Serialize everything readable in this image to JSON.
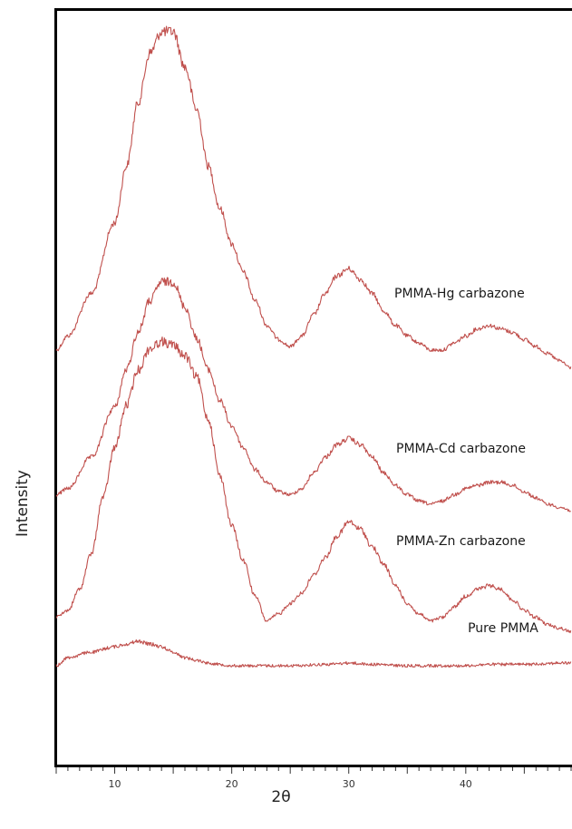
{
  "chart_data": {
    "type": "line",
    "title": "",
    "xlabel": "2θ",
    "ylabel": "Intensity",
    "xlim": [
      5,
      49
    ],
    "xticks": [
      10,
      20,
      30,
      40
    ],
    "grid": false,
    "line_color": "#c0504d",
    "series": [
      {
        "name": "PMMA-Hg carbazone",
        "points": [
          [
            5,
            0.1
          ],
          [
            6,
            0.14
          ],
          [
            8,
            0.26
          ],
          [
            10,
            0.46
          ],
          [
            11,
            0.62
          ],
          [
            12,
            0.8
          ],
          [
            13,
            0.94
          ],
          [
            14,
            1.0
          ],
          [
            15,
            1.0
          ],
          [
            16,
            0.9
          ],
          [
            17,
            0.78
          ],
          [
            18,
            0.62
          ],
          [
            19,
            0.5
          ],
          [
            20,
            0.4
          ],
          [
            21,
            0.32
          ],
          [
            22,
            0.24
          ],
          [
            23,
            0.17
          ],
          [
            24,
            0.13
          ],
          [
            25,
            0.11
          ],
          [
            26,
            0.14
          ],
          [
            27,
            0.2
          ],
          [
            28,
            0.26
          ],
          [
            29,
            0.31
          ],
          [
            30,
            0.33
          ],
          [
            31,
            0.3
          ],
          [
            32,
            0.26
          ],
          [
            33,
            0.21
          ],
          [
            34,
            0.17
          ],
          [
            35,
            0.14
          ],
          [
            36,
            0.12
          ],
          [
            37,
            0.1
          ],
          [
            38,
            0.1
          ],
          [
            39,
            0.12
          ],
          [
            40,
            0.14
          ],
          [
            41,
            0.16
          ],
          [
            42,
            0.17
          ],
          [
            43,
            0.16
          ],
          [
            44,
            0.15
          ],
          [
            45,
            0.13
          ],
          [
            46,
            0.11
          ],
          [
            47,
            0.09
          ],
          [
            48,
            0.07
          ],
          [
            49,
            0.05
          ]
        ]
      },
      {
        "name": "PMMA-Cd carbazone",
        "points": [
          [
            5,
            0.1
          ],
          [
            6,
            0.12
          ],
          [
            8,
            0.22
          ],
          [
            10,
            0.38
          ],
          [
            11,
            0.5
          ],
          [
            12,
            0.62
          ],
          [
            13,
            0.72
          ],
          [
            14,
            0.78
          ],
          [
            15,
            0.78
          ],
          [
            16,
            0.7
          ],
          [
            17,
            0.6
          ],
          [
            18,
            0.5
          ],
          [
            19,
            0.4
          ],
          [
            20,
            0.32
          ],
          [
            21,
            0.25
          ],
          [
            22,
            0.18
          ],
          [
            23,
            0.14
          ],
          [
            24,
            0.11
          ],
          [
            25,
            0.1
          ],
          [
            26,
            0.12
          ],
          [
            27,
            0.17
          ],
          [
            28,
            0.22
          ],
          [
            29,
            0.26
          ],
          [
            30,
            0.28
          ],
          [
            31,
            0.26
          ],
          [
            32,
            0.22
          ],
          [
            33,
            0.17
          ],
          [
            34,
            0.13
          ],
          [
            35,
            0.1
          ],
          [
            36,
            0.08
          ],
          [
            37,
            0.07
          ],
          [
            38,
            0.08
          ],
          [
            39,
            0.1
          ],
          [
            40,
            0.12
          ],
          [
            41,
            0.13
          ],
          [
            42,
            0.14
          ],
          [
            43,
            0.14
          ],
          [
            44,
            0.13
          ],
          [
            45,
            0.11
          ],
          [
            46,
            0.09
          ],
          [
            47,
            0.07
          ],
          [
            48,
            0.06
          ],
          [
            49,
            0.05
          ]
        ]
      },
      {
        "name": "PMMA-Zn carbazone",
        "points": [
          [
            5,
            0.08
          ],
          [
            6,
            0.1
          ],
          [
            7,
            0.16
          ],
          [
            8,
            0.26
          ],
          [
            9,
            0.42
          ],
          [
            10,
            0.56
          ],
          [
            11,
            0.68
          ],
          [
            12,
            0.78
          ],
          [
            13,
            0.84
          ],
          [
            14,
            0.86
          ],
          [
            15,
            0.85
          ],
          [
            16,
            0.82
          ],
          [
            17,
            0.76
          ],
          [
            18,
            0.64
          ],
          [
            19,
            0.48
          ],
          [
            20,
            0.34
          ],
          [
            21,
            0.24
          ],
          [
            22,
            0.14
          ],
          [
            23,
            0.07
          ],
          [
            24,
            0.09
          ],
          [
            25,
            0.12
          ],
          [
            26,
            0.15
          ],
          [
            27,
            0.2
          ],
          [
            28,
            0.25
          ],
          [
            29,
            0.31
          ],
          [
            30,
            0.35
          ],
          [
            31,
            0.33
          ],
          [
            32,
            0.28
          ],
          [
            33,
            0.23
          ],
          [
            34,
            0.17
          ],
          [
            35,
            0.12
          ],
          [
            36,
            0.09
          ],
          [
            37,
            0.07
          ],
          [
            38,
            0.08
          ],
          [
            39,
            0.11
          ],
          [
            40,
            0.14
          ],
          [
            41,
            0.16
          ],
          [
            42,
            0.17
          ],
          [
            43,
            0.16
          ],
          [
            44,
            0.13
          ],
          [
            45,
            0.1
          ],
          [
            46,
            0.08
          ],
          [
            47,
            0.06
          ],
          [
            48,
            0.05
          ],
          [
            49,
            0.04
          ]
        ]
      },
      {
        "name": "Pure PMMA",
        "points": [
          [
            5,
            0.02
          ],
          [
            6,
            0.05
          ],
          [
            8,
            0.07
          ],
          [
            10,
            0.09
          ],
          [
            11,
            0.1
          ],
          [
            12,
            0.11
          ],
          [
            13,
            0.1
          ],
          [
            14,
            0.09
          ],
          [
            15,
            0.07
          ],
          [
            16,
            0.05
          ],
          [
            17,
            0.04
          ],
          [
            18,
            0.03
          ],
          [
            19,
            0.025
          ],
          [
            20,
            0.02
          ],
          [
            22,
            0.02
          ],
          [
            25,
            0.02
          ],
          [
            28,
            0.025
          ],
          [
            30,
            0.03
          ],
          [
            32,
            0.025
          ],
          [
            35,
            0.02
          ],
          [
            38,
            0.02
          ],
          [
            40,
            0.02
          ],
          [
            42,
            0.025
          ],
          [
            45,
            0.025
          ],
          [
            48,
            0.03
          ],
          [
            49,
            0.03
          ]
        ]
      }
    ]
  }
}
